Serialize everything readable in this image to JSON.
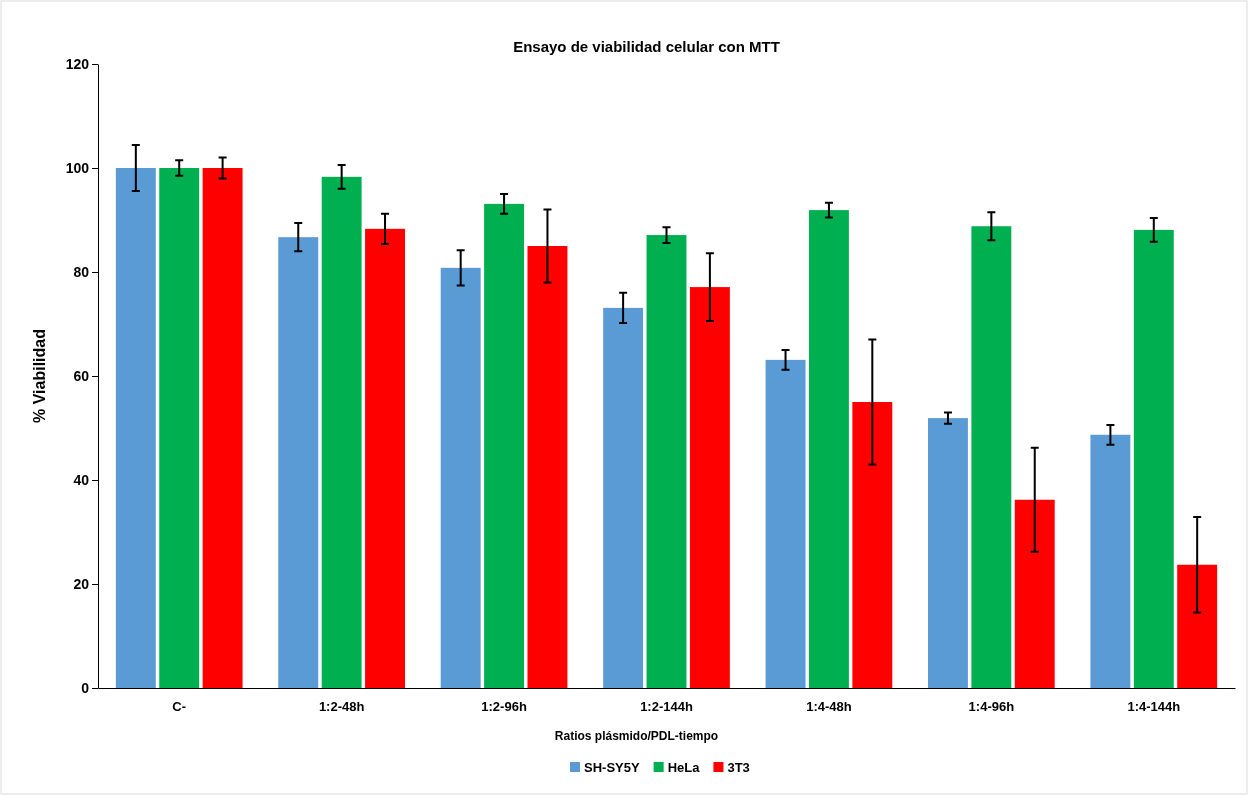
{
  "chart_data": {
    "type": "bar",
    "title": "Ensayo de viabilidad celular con MTT",
    "xlabel": "Ratios plásmido/PDL-tiempo",
    "ylabel": "% Viabilidad",
    "categories": [
      "C-",
      "1:2-48h",
      "1:2-96h",
      "1:2-144h",
      "1:4-48h",
      "1:4-96h",
      "1:4-144h"
    ],
    "series": [
      {
        "name": "SH-SY5Y",
        "color": "#5b9bd5",
        "values": [
          100,
          86.7,
          80.8,
          73.1,
          63.1,
          51.9,
          48.7
        ],
        "errors": [
          4.4,
          2.7,
          3.4,
          2.9,
          1.9,
          1.1,
          1.9
        ]
      },
      {
        "name": "HeLa",
        "color": "#00b050",
        "values": [
          100,
          98.3,
          93.1,
          87.1,
          91.9,
          88.8,
          88.1
        ],
        "errors": [
          1.5,
          2.3,
          1.9,
          1.5,
          1.4,
          2.7,
          2.3
        ]
      },
      {
        "name": "3T3",
        "color": "#ff0000",
        "values": [
          100,
          88.3,
          85,
          77.1,
          55,
          36.2,
          23.7
        ],
        "errors": [
          2,
          2.9,
          7,
          6.5,
          12,
          10,
          9.2
        ]
      }
    ],
    "ylim": [
      0,
      120
    ],
    "yticks": [
      0,
      20,
      40,
      60,
      80,
      100,
      120
    ],
    "legend": "bottom"
  }
}
